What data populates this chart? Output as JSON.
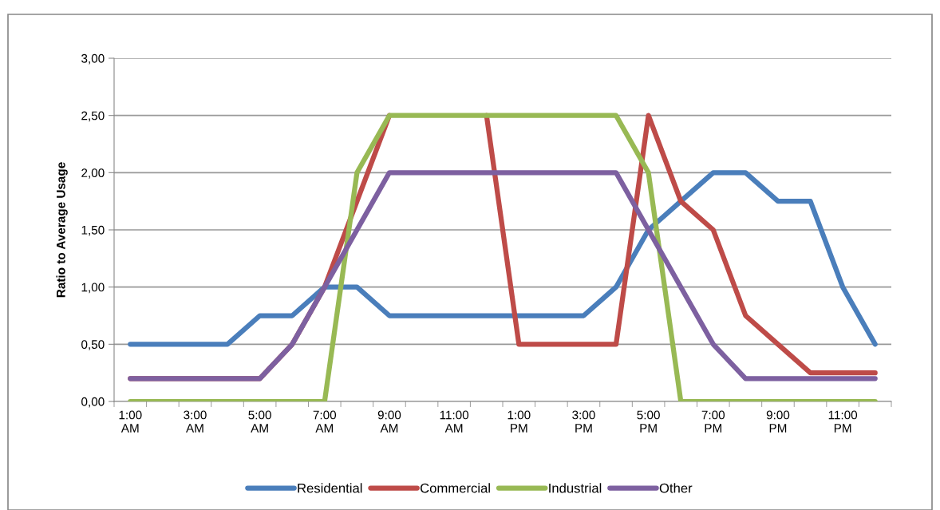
{
  "chart_data": {
    "type": "line",
    "ylabel": "Ratio to Average Usage",
    "categories": [
      "1:00\nAM",
      null,
      "3:00\nAM",
      null,
      "5:00\nAM",
      null,
      "7:00\nAM",
      null,
      "9:00\nAM",
      null,
      "11:00\nAM",
      null,
      "1:00\nPM",
      null,
      "3:00\nPM",
      null,
      "5:00\nPM",
      null,
      "7:00\nPM",
      null,
      "9:00\nPM",
      null,
      "11:00\nPM",
      null
    ],
    "series": [
      {
        "name": "Residential",
        "color": "#4a7ebb",
        "values": [
          0.5,
          0.5,
          0.5,
          0.5,
          0.75,
          0.75,
          1.0,
          1.0,
          0.75,
          0.75,
          0.75,
          0.75,
          0.75,
          0.75,
          0.75,
          1.0,
          1.5,
          1.75,
          2.0,
          2.0,
          1.75,
          1.75,
          1.0,
          0.5
        ]
      },
      {
        "name": "Commercial",
        "color": "#be4b48",
        "values": [
          0.2,
          0.2,
          0.2,
          0.2,
          0.2,
          0.5,
          1.0,
          1.75,
          2.5,
          null,
          null,
          2.5,
          0.5,
          0.5,
          0.5,
          0.5,
          2.5,
          1.75,
          1.5,
          0.75,
          0.5,
          0.25,
          0.25,
          0.25
        ]
      },
      {
        "name": "Industrial",
        "color": "#98b954",
        "values": [
          0,
          0,
          0,
          0,
          0,
          0,
          0,
          2.0,
          2.5,
          2.5,
          2.5,
          2.5,
          2.5,
          2.5,
          2.5,
          2.5,
          2.0,
          0,
          0,
          0,
          0,
          0,
          0,
          0
        ]
      },
      {
        "name": "Other",
        "color": "#7d60a0",
        "values": [
          0.2,
          0.2,
          0.2,
          0.2,
          0.2,
          0.5,
          1.0,
          1.5,
          2.0,
          2.0,
          2.0,
          2.0,
          2.0,
          2.0,
          2.0,
          2.0,
          1.5,
          1.0,
          0.5,
          0.2,
          0.2,
          0.2,
          0.2,
          0.2
        ]
      }
    ],
    "ylim": [
      0,
      3
    ],
    "yticks": [
      {
        "value": 0,
        "label": "0,00"
      },
      {
        "value": 0.5,
        "label": "0,50"
      },
      {
        "value": 1,
        "label": "1,00"
      },
      {
        "value": 1.5,
        "label": "1,50"
      },
      {
        "value": 2,
        "label": "2,00"
      },
      {
        "value": 2.5,
        "label": "2,50"
      },
      {
        "value": 3,
        "label": "3,00"
      }
    ],
    "grid": "y",
    "legend": "bottom",
    "marker": "none",
    "line_style": "solid"
  }
}
